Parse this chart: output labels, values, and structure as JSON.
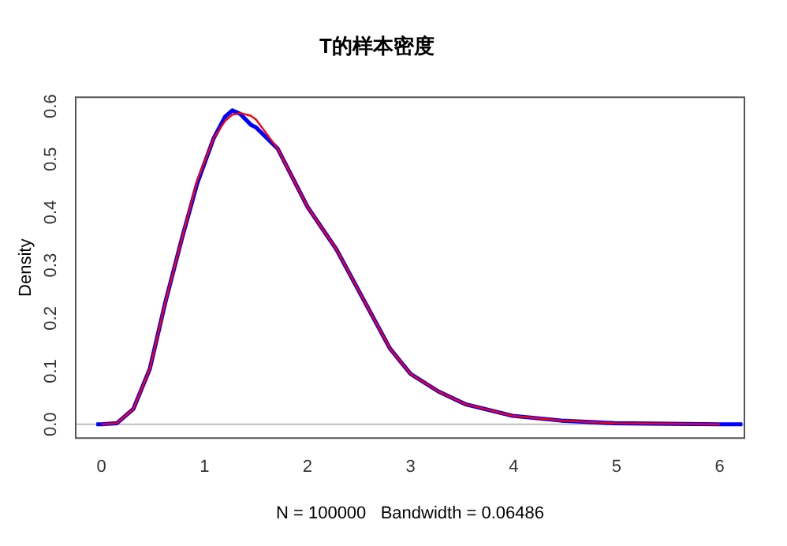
{
  "chart_data": {
    "type": "line",
    "title": "T的样本密度",
    "xlabel": "N = 100000   Bandwidth = 0.06486",
    "ylabel": "Density",
    "xlim": [
      -0.25,
      6.24
    ],
    "ylim": [
      -0.026,
      0.617
    ],
    "xticks": [
      0,
      1,
      2,
      3,
      4,
      5,
      6
    ],
    "yticks": [
      {
        "value": 0,
        "label": "0.0"
      },
      {
        "value": 0.1,
        "label": "0.1"
      },
      {
        "value": 0.2,
        "label": "0.2"
      },
      {
        "value": 0.3,
        "label": "0.3"
      },
      {
        "value": 0.4,
        "label": "0.4"
      },
      {
        "value": 0.5,
        "label": "0.5"
      },
      {
        "value": 0.6,
        "label": "0.6"
      }
    ],
    "grid": false,
    "legend": false,
    "marker": "none",
    "line_style": "solid",
    "ref_lines": [
      {
        "axis": "y",
        "value": 0,
        "color": "#bebebe"
      }
    ],
    "series": [
      {
        "color": "#0000ff",
        "x": [
          -0.05,
          0,
          0.15,
          0.31,
          0.47,
          0.62,
          0.78,
          0.93,
          1.09,
          1.2,
          1.27,
          1.35,
          1.45,
          1.5,
          1.71,
          2.0,
          2.28,
          2.53,
          2.8,
          3.0,
          3.27,
          3.53,
          3.99,
          4.46,
          4.98,
          5.5,
          6.0,
          6.22
        ],
        "values": [
          0,
          0,
          0.002,
          0.029,
          0.105,
          0.23,
          0.35,
          0.455,
          0.54,
          0.58,
          0.592,
          0.585,
          0.565,
          0.56,
          0.52,
          0.41,
          0.33,
          0.24,
          0.143,
          0.095,
          0.062,
          0.038,
          0.016,
          0.007,
          0.002,
          0.001,
          0,
          0
        ]
      },
      {
        "color": "#ff0000",
        "x": [
          0,
          0.15,
          0.31,
          0.47,
          0.62,
          0.78,
          0.93,
          1.09,
          1.2,
          1.27,
          1.35,
          1.45,
          1.5,
          1.71,
          2.0,
          2.28,
          2.53,
          2.8,
          3.0,
          3.27,
          3.53,
          3.99,
          4.46,
          4.98,
          5.5,
          6.0
        ],
        "values": [
          0,
          0.002,
          0.029,
          0.105,
          0.23,
          0.35,
          0.46,
          0.54,
          0.572,
          0.584,
          0.587,
          0.582,
          0.575,
          0.52,
          0.41,
          0.33,
          0.24,
          0.143,
          0.095,
          0.062,
          0.038,
          0.016,
          0.007,
          0.002,
          0.001,
          0
        ]
      }
    ]
  }
}
